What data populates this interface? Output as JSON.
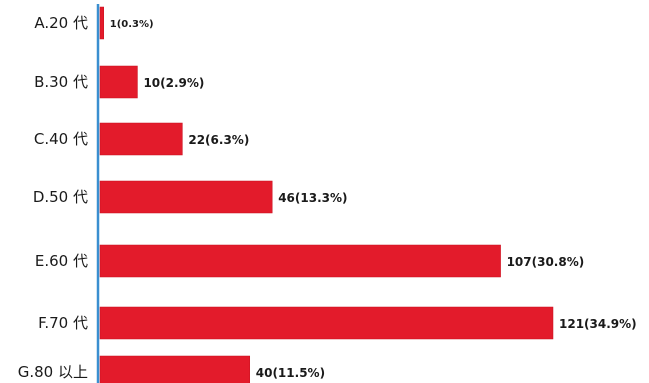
{
  "chart_data": {
    "type": "bar",
    "orientation": "horizontal",
    "categories": [
      "A.20 代",
      "B.30 代",
      "C.40 代",
      "D.50 代",
      "E.60 代",
      "F.70 代",
      "G.80 以上"
    ],
    "values": [
      1,
      10,
      22,
      46,
      107,
      121,
      40
    ],
    "data_labels": [
      "1(0.3%)",
      "10(2.9%)",
      "22(6.3%)",
      "46(13.3%)",
      "107(30.8%)",
      "121(34.9%)",
      "40(11.5%)"
    ],
    "title": "",
    "xlabel": "",
    "ylabel": "",
    "xlim": [
      0,
      121
    ],
    "grid": false,
    "legend": "none",
    "colors": {
      "bar": "#e31b2b",
      "bar_edge": "#c8101f",
      "axis": "#3a8fd0",
      "text": "#1a1a1a"
    }
  }
}
